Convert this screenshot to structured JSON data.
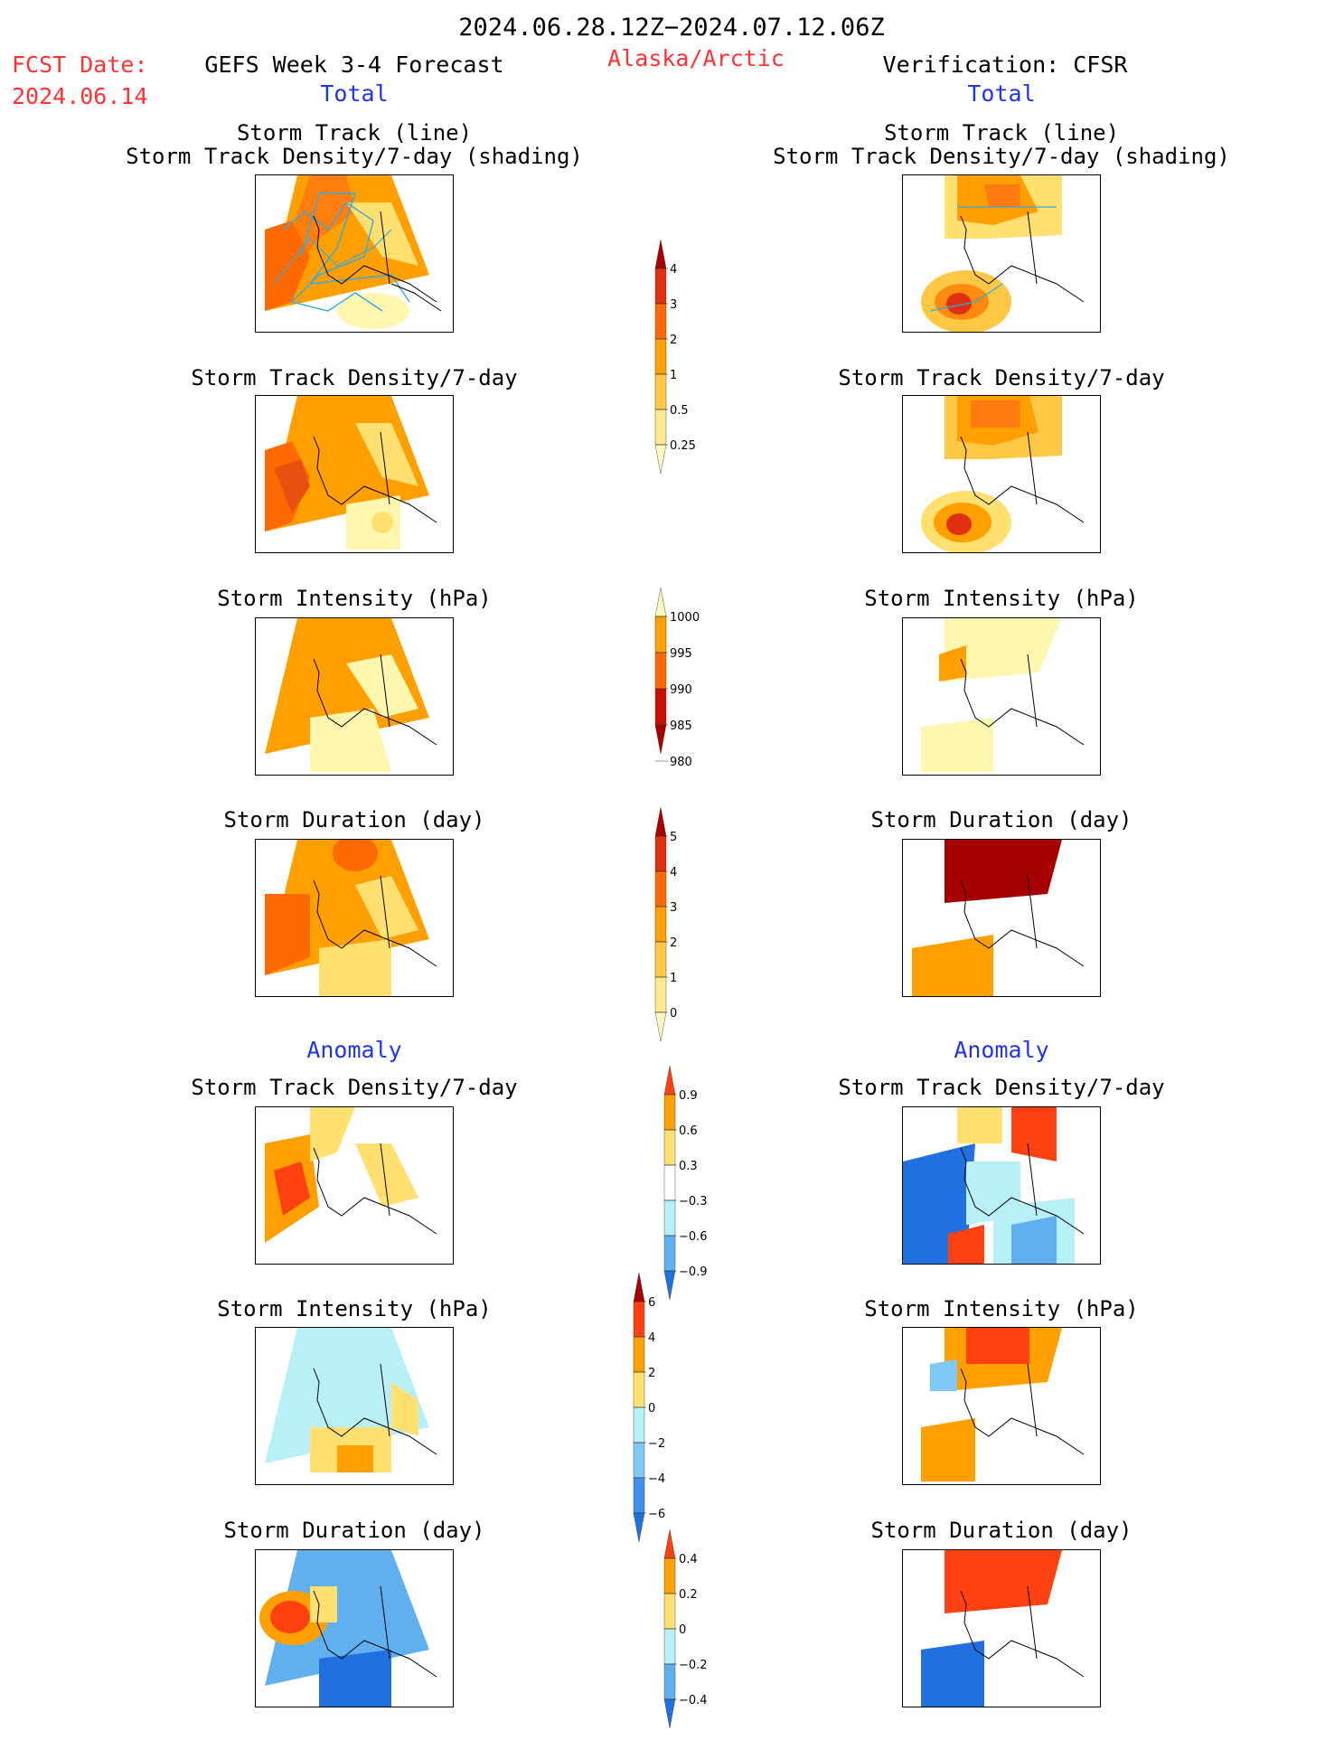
{
  "header": {
    "period": "2024.06.28.12Z−2024.07.12.06Z",
    "fcst_label": "FCST Date:",
    "fcst_date": "2024.06.14",
    "left_model": "GEFS Week 3-4 Forecast",
    "region": "Alaska/Arctic",
    "right_model": "Verification: CFSR",
    "left_section": "Total",
    "right_section": "Total",
    "left_anom_section": "Anomaly",
    "right_anom_section": "Anomaly"
  },
  "panels": {
    "p1_line1": "Storm Track (line)",
    "p1_line2": "Storm Track Density/7-day (shading)",
    "p2": "Storm Track Density/7-day",
    "p3": "Storm Intensity (hPa)",
    "p4": "Storm Duration (day)",
    "p5": "Storm Track Density/7-day",
    "p6": "Storm Intensity (hPa)",
    "p7": "Storm Duration (day)"
  },
  "colorbars": {
    "density_total": {
      "labels": [
        "4",
        "3",
        "2",
        "1",
        "0.5",
        "0.25"
      ],
      "colors": [
        "#a80000",
        "#e03010",
        "#ff6a00",
        "#ffa000",
        "#ffc844",
        "#ffe890",
        "#fff8c0"
      ]
    },
    "intensity_total": {
      "labels": [
        "1000",
        "995",
        "990",
        "985",
        "980"
      ],
      "colors": [
        "#fff8c0",
        "#ffa000",
        "#ff6a00",
        "#cc1000",
        "#a80000"
      ]
    },
    "duration_total": {
      "labels": [
        "5",
        "4",
        "3",
        "2",
        "1",
        "0"
      ],
      "colors": [
        "#a80000",
        "#e03010",
        "#ff6a00",
        "#ffa000",
        "#ffc844",
        "#ffe890",
        "#fff8c0"
      ]
    },
    "density_anom": {
      "labels": [
        "0.9",
        "0.6",
        "0.3",
        "−0.3",
        "−0.6",
        "−0.9"
      ],
      "colors": [
        "#ff4010",
        "#ffa000",
        "#ffe070",
        "#ffffff",
        "#b8f0f8",
        "#60b0f0",
        "#2070e0"
      ]
    },
    "intensity_anom": {
      "labels": [
        "6",
        "4",
        "2",
        "0",
        "−2",
        "−4",
        "−6"
      ],
      "colors": [
        "#a80000",
        "#ff4010",
        "#ffa000",
        "#ffe070",
        "#b8f0f8",
        "#80c8f8",
        "#4090f0",
        "#2070e0"
      ]
    },
    "duration_anom": {
      "labels": [
        "0.4",
        "0.2",
        "0",
        "−0.2",
        "−0.4"
      ],
      "colors": [
        "#ff4010",
        "#ffa000",
        "#ffe070",
        "#b8f0f8",
        "#60b0f0",
        "#2070e0"
      ]
    }
  },
  "colors": {
    "title_red": "#ff3333",
    "section_blue": "#2233ee",
    "track_line": "#33aadd"
  }
}
